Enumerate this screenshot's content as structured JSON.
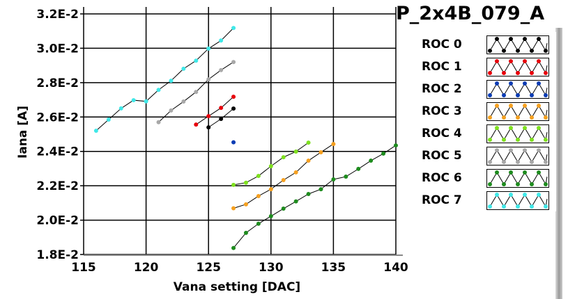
{
  "chart_data": {
    "type": "line",
    "title": "P_2x4B_079_A",
    "xlabel": "Vana setting [DAC]",
    "ylabel": "Iana [A]",
    "xlim": [
      115,
      140
    ],
    "ylim": [
      0.018,
      0.032
    ],
    "xticks": [
      115,
      120,
      125,
      130,
      135,
      140
    ],
    "yticks": [
      0.018,
      0.02,
      0.022,
      0.024,
      0.026,
      0.028,
      0.03,
      0.032
    ],
    "ytick_labels": [
      "1.8E-2",
      "2.0E-2",
      "2.2E-2",
      "2.4E-2",
      "2.6E-2",
      "2.8E-2",
      "3.0E-2",
      "3.2E-2"
    ],
    "grid": true,
    "legend_position": "right",
    "series": [
      {
        "name": "ROC 0",
        "color": "#000000",
        "x": [
          125,
          126,
          127
        ],
        "y": [
          0.0254,
          0.02589,
          0.02649
        ]
      },
      {
        "name": "ROC 1",
        "color": "#e8000b",
        "x": [
          124,
          125,
          126,
          127
        ],
        "y": [
          0.02556,
          0.02605,
          0.02653,
          0.02718
        ]
      },
      {
        "name": "ROC 2",
        "color": "#0a3cb4",
        "x": [
          127
        ],
        "y": [
          0.02453
        ]
      },
      {
        "name": "ROC 3",
        "color": "#f5a020",
        "x": [
          127,
          128,
          129,
          130,
          131,
          132,
          133,
          134,
          135
        ],
        "y": [
          0.02069,
          0.02092,
          0.0214,
          0.0218,
          0.02233,
          0.02278,
          0.02346,
          0.02395,
          0.02443
        ]
      },
      {
        "name": "ROC 4",
        "color": "#7ee01e",
        "x": [
          127,
          128,
          129,
          130,
          131,
          132,
          133
        ],
        "y": [
          0.02205,
          0.02218,
          0.02257,
          0.02314,
          0.02366,
          0.02399,
          0.02451
        ]
      },
      {
        "name": "ROC 5",
        "color": "#a8a8a8",
        "x": [
          121,
          122,
          123,
          124,
          125,
          126,
          127
        ],
        "y": [
          0.0257,
          0.02638,
          0.0269,
          0.02746,
          0.02819,
          0.02873,
          0.0292
        ]
      },
      {
        "name": "ROC 6",
        "color": "#1e8c1e",
        "x": [
          127,
          128,
          129,
          130,
          131,
          132,
          133,
          134,
          135,
          136,
          137,
          138,
          139,
          140
        ],
        "y": [
          0.01838,
          0.01926,
          0.01979,
          0.02023,
          0.02067,
          0.02109,
          0.02152,
          0.0218,
          0.02237,
          0.02253,
          0.02298,
          0.02346,
          0.02387,
          0.02435
        ]
      },
      {
        "name": "ROC 7",
        "color": "#40e8e8",
        "x": [
          116,
          117,
          118,
          119,
          120,
          121,
          122,
          123,
          124,
          125,
          126,
          127
        ],
        "y": [
          0.0252,
          0.02585,
          0.0265,
          0.02698,
          0.02691,
          0.02758,
          0.02811,
          0.02881,
          0.02928,
          0.02998,
          0.03045,
          0.03118
        ]
      }
    ]
  }
}
